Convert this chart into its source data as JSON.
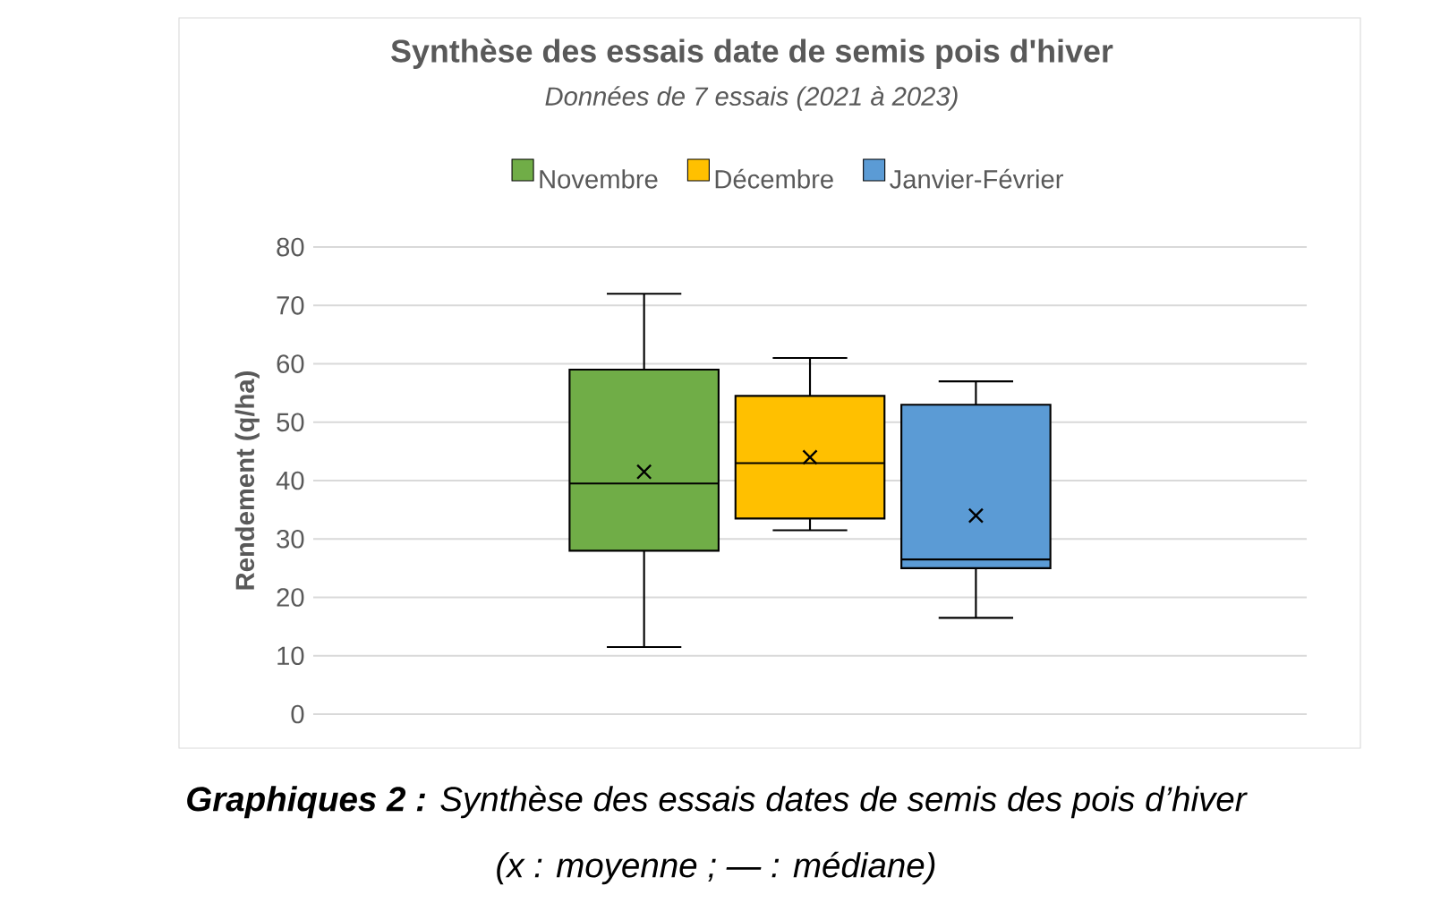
{
  "chart_data": {
    "type": "box",
    "title": "Synthèse des essais date de semis pois d'hiver",
    "subtitle": "Données de 7 essais (2021 à 2023)",
    "ylabel": "Rendement (q/ha)",
    "categories": [
      null
    ],
    "series": [
      {
        "name": "Novembre",
        "color": "#70ad47",
        "boxes": [
          {
            "low": 11.5,
            "q1": 28,
            "median": 39.5,
            "q3": 59,
            "high": 72,
            "mean": 41.5
          }
        ]
      },
      {
        "name": "Décembre",
        "color": "#ffc000",
        "boxes": [
          {
            "low": 31.5,
            "q1": 33.5,
            "median": 43,
            "q3": 54.5,
            "high": 61,
            "mean": 44
          }
        ]
      },
      {
        "name": "Janvier-Février",
        "color": "#5b9bd5",
        "boxes": [
          {
            "low": 16.5,
            "q1": 25,
            "median": 26.5,
            "q3": 53,
            "high": 57,
            "mean": 34
          }
        ]
      }
    ],
    "ylim": [
      0,
      80
    ],
    "yticks": [
      0,
      10,
      20,
      30,
      40,
      50,
      60,
      70,
      80
    ],
    "grid": "y",
    "legend": "top",
    "annotations": [
      "**Graphiques 2 :** Synthèse des essais dates de semis des pois d’hiver",
      "(x : moyenne ; — : médiane)"
    ]
  }
}
